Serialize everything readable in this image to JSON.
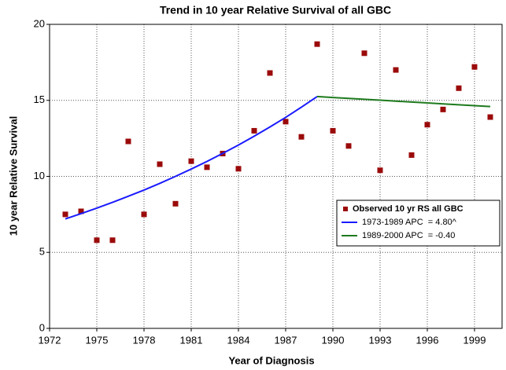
{
  "chart_data": {
    "type": "scatter",
    "title": "Trend in 10 year Relative Survival of all GBC",
    "x_label": "Year of Diagnosis",
    "y_label": "10 year Relative Survival",
    "x": [
      1973,
      1974,
      1975,
      1976,
      1977,
      1978,
      1979,
      1980,
      1981,
      1982,
      1983,
      1984,
      1985,
      1986,
      1987,
      1988,
      1989,
      1990,
      1991,
      1992,
      1993,
      1994,
      1995,
      1996,
      1997,
      1998,
      1999,
      2000
    ],
    "series": [
      {
        "name": "Observed 10 yr RS all GBC",
        "color": "#9b0a0a",
        "mark": "point",
        "values": [
          7.5,
          7.7,
          5.8,
          5.8,
          12.3,
          7.5,
          10.8,
          8.2,
          11.0,
          10.6,
          11.5,
          10.5,
          13.0,
          16.8,
          13.6,
          12.6,
          18.7,
          13.0,
          12.0,
          18.1,
          10.4,
          17.0,
          11.4,
          13.4,
          14.4,
          15.8,
          17.2,
          13.9
        ]
      },
      {
        "name": "1973-1989 APC  = 4.80^",
        "color": "#1a1aff",
        "mark": "line",
        "values": [
          7.2,
          7.55,
          7.91,
          8.29,
          8.69,
          9.1,
          9.54,
          10.0,
          10.48,
          10.98,
          11.51,
          12.06,
          12.64,
          13.25,
          13.88,
          14.55,
          15.25,
          null,
          null,
          null,
          null,
          null,
          null,
          null,
          null,
          null,
          null,
          null
        ]
      },
      {
        "name": "1989-2000 APC  = -0.40",
        "color": "#1e7a1e",
        "mark": "line",
        "values": [
          null,
          null,
          null,
          null,
          null,
          null,
          null,
          null,
          null,
          null,
          null,
          null,
          null,
          null,
          null,
          null,
          15.25,
          15.19,
          15.13,
          15.07,
          15.01,
          14.95,
          14.89,
          14.83,
          14.77,
          14.71,
          14.65,
          14.59
        ]
      }
    ],
    "xlim": [
      1972,
      2000.75
    ],
    "xticks": [
      1972,
      1975,
      1978,
      1981,
      1984,
      1987,
      1990,
      1993,
      1996,
      1999
    ],
    "ylim": [
      0,
      20
    ],
    "yticks": [
      0,
      5,
      10,
      15,
      20
    ],
    "grid": true,
    "legend": "right"
  }
}
